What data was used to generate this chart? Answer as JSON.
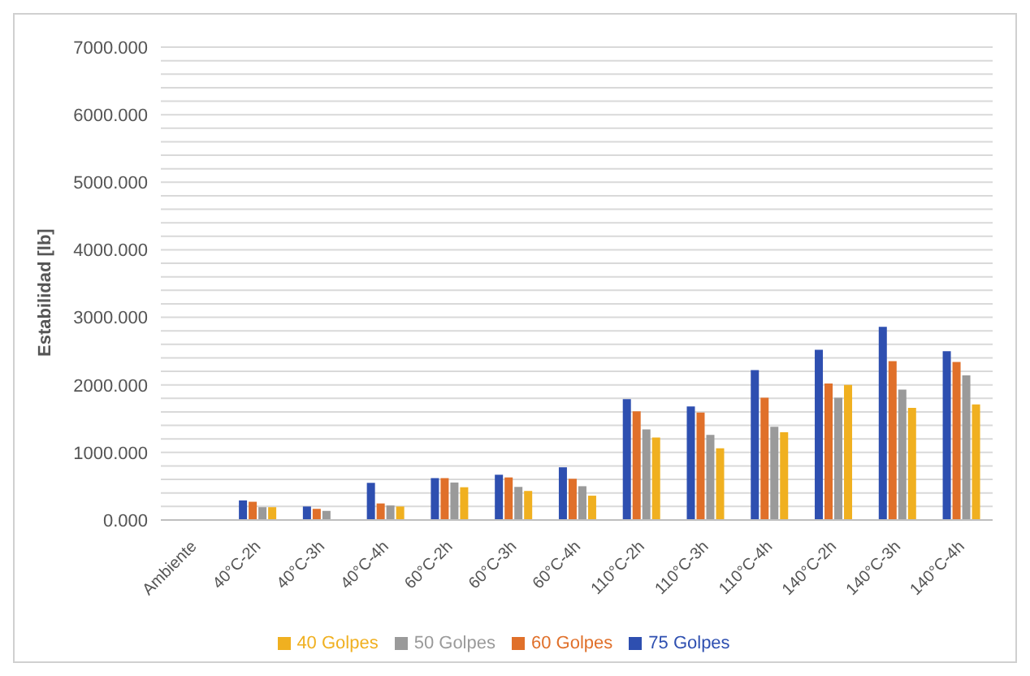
{
  "chart_data": {
    "type": "bar",
    "ylabel": "Estabilidad [lb]",
    "categories": [
      "Ambiente",
      "40°C-2h",
      "40°C-3h",
      "40°C-4h",
      "60°C-2h",
      "60°C-3h",
      "60°C-4h",
      "110°C-2h",
      "110°C-3h",
      "110°C-4h",
      "140°C-2h",
      "140°C-3h",
      "140°C-4h"
    ],
    "series": [
      {
        "name": "75 Golpes",
        "color": "#2e4fb0",
        "values": [
          null,
          290,
          200,
          550,
          620,
          670,
          780,
          1790,
          1680,
          2220,
          2520,
          2860,
          2500
        ]
      },
      {
        "name": "60 Golpes",
        "color": "#e0702a",
        "values": [
          null,
          270,
          165,
          245,
          620,
          630,
          610,
          1610,
          1590,
          1810,
          2020,
          2350,
          2340
        ]
      },
      {
        "name": "50 Golpes",
        "color": "#9a9a9a",
        "values": [
          null,
          190,
          135,
          215,
          555,
          490,
          500,
          1340,
          1260,
          1380,
          1810,
          1930,
          2140
        ]
      },
      {
        "name": "40 Golpes",
        "color": "#f0b020",
        "values": [
          null,
          190,
          null,
          200,
          485,
          430,
          360,
          1220,
          1060,
          1300,
          2000,
          1660,
          1710
        ]
      }
    ],
    "ylim": [
      0,
      7000
    ],
    "yticks": [
      {
        "value": 0,
        "label": "0.000"
      },
      {
        "value": 200,
        "label": null
      },
      {
        "value": 400,
        "label": null
      },
      {
        "value": 600,
        "label": null
      },
      {
        "value": 800,
        "label": null
      },
      {
        "value": 1000,
        "label": "1000.000"
      },
      {
        "value": 1200,
        "label": null
      },
      {
        "value": 1400,
        "label": null
      },
      {
        "value": 1600,
        "label": null
      },
      {
        "value": 1800,
        "label": null
      },
      {
        "value": 2000,
        "label": "2000.000"
      },
      {
        "value": 2200,
        "label": null
      },
      {
        "value": 2400,
        "label": null
      },
      {
        "value": 2600,
        "label": null
      },
      {
        "value": 2800,
        "label": null
      },
      {
        "value": 3000,
        "label": "3000.000"
      },
      {
        "value": 3200,
        "label": null
      },
      {
        "value": 3400,
        "label": null
      },
      {
        "value": 3600,
        "label": null
      },
      {
        "value": 3800,
        "label": null
      },
      {
        "value": 4000,
        "label": "4000.000"
      },
      {
        "value": 4200,
        "label": null
      },
      {
        "value": 4400,
        "label": null
      },
      {
        "value": 4600,
        "label": null
      },
      {
        "value": 4800,
        "label": null
      },
      {
        "value": 5000,
        "label": "5000.000"
      },
      {
        "value": 5200,
        "label": null
      },
      {
        "value": 5400,
        "label": null
      },
      {
        "value": 5600,
        "label": null
      },
      {
        "value": 5800,
        "label": null
      },
      {
        "value": 6000,
        "label": "6000.000"
      },
      {
        "value": 6200,
        "label": null
      },
      {
        "value": 6400,
        "label": null
      },
      {
        "value": 6600,
        "label": null
      },
      {
        "value": 6800,
        "label": null
      },
      {
        "value": 7000,
        "label": "7000.000"
      }
    ],
    "grid": "y",
    "legend": "bottom"
  }
}
